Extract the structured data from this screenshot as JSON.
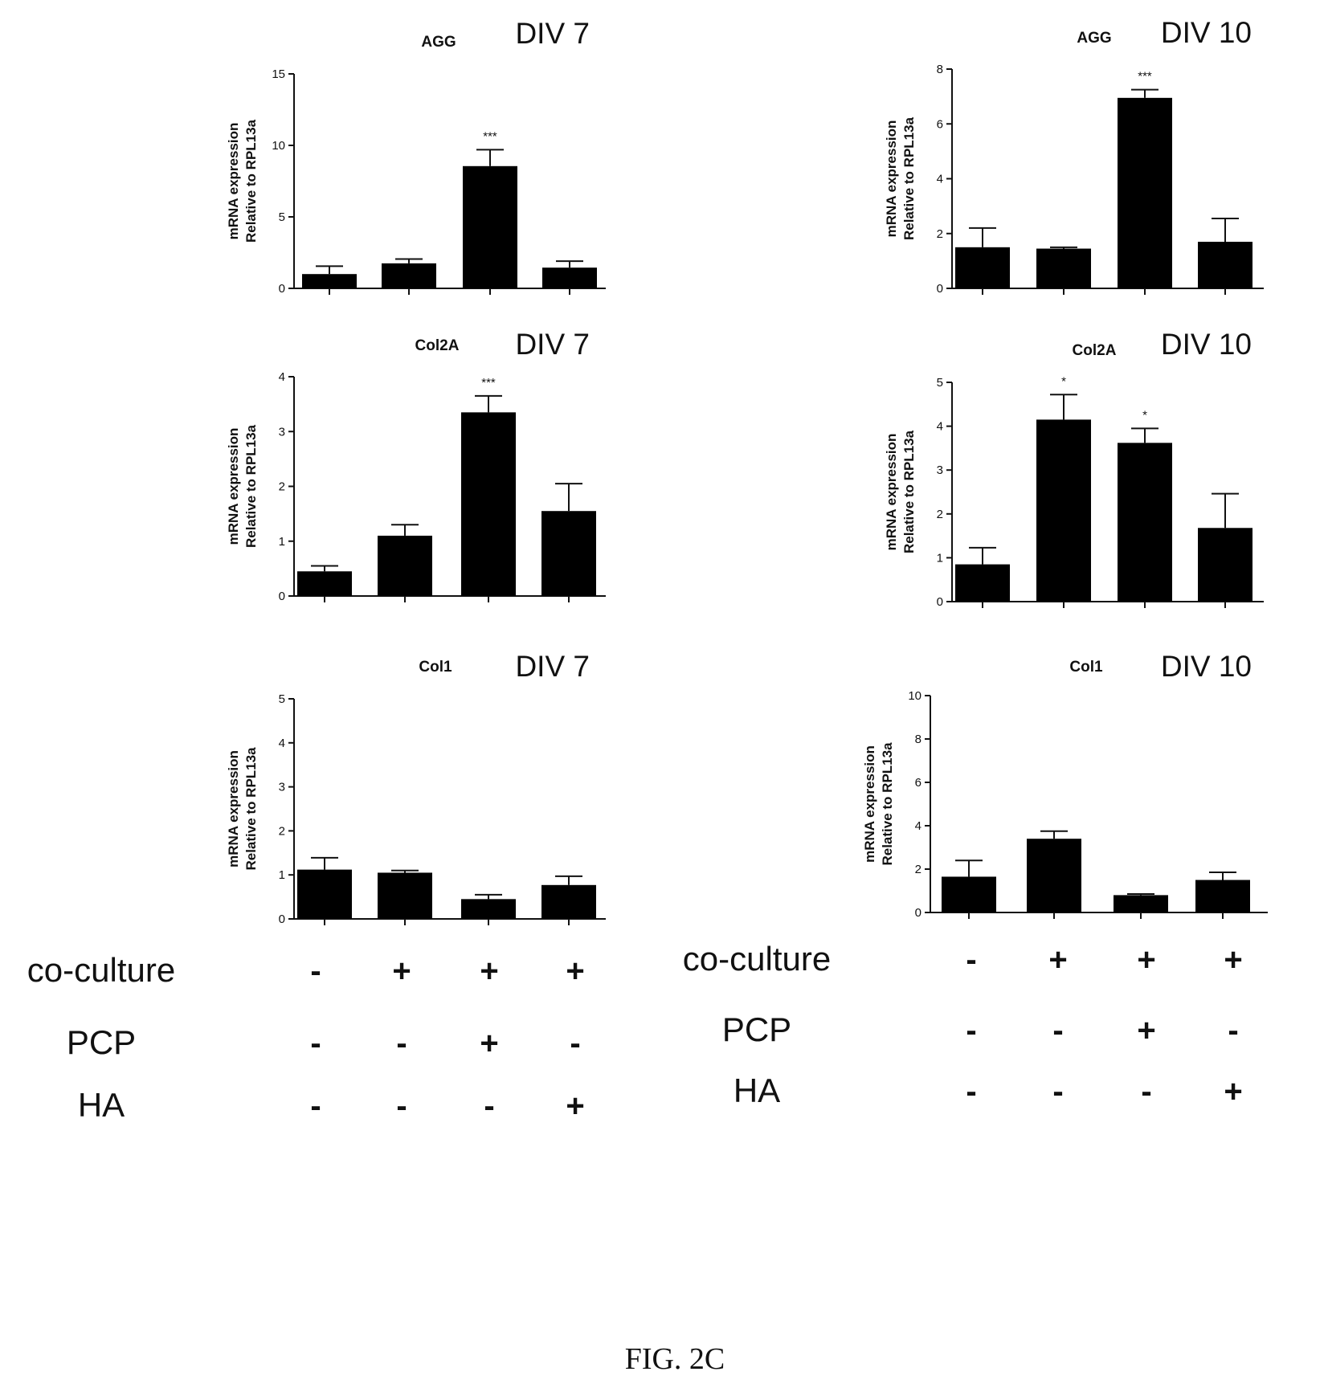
{
  "figure": {
    "caption": "FIG. 2C"
  },
  "chart_data": [
    {
      "type": "bar",
      "gene": "AGG",
      "div": "DIV 7",
      "ylabel": [
        "mRNA expression",
        "Relative to RPL13a"
      ],
      "ylim": [
        0,
        15
      ],
      "yticks": [
        0,
        5,
        10,
        15
      ],
      "values": [
        1.0,
        1.75,
        8.55,
        1.45
      ],
      "errors": [
        0.55,
        0.3,
        1.15,
        0.45
      ],
      "stars": [
        "",
        "",
        "***",
        ""
      ]
    },
    {
      "type": "bar",
      "gene": "AGG",
      "div": "DIV 10",
      "ylabel": [
        "mRNA expression",
        "Relative to RPL13a"
      ],
      "ylim": [
        0,
        8
      ],
      "yticks": [
        0,
        2,
        4,
        6,
        8
      ],
      "values": [
        1.5,
        1.45,
        6.95,
        1.7
      ],
      "errors": [
        0.7,
        0.05,
        0.3,
        0.85
      ],
      "stars": [
        "",
        "",
        "***",
        ""
      ]
    },
    {
      "type": "bar",
      "gene": "Col2A",
      "div": "DIV 7",
      "ylabel": [
        "mRNA expression",
        "Relative to RPL13a"
      ],
      "ylim": [
        0,
        4
      ],
      "yticks": [
        0,
        1,
        2,
        3,
        4
      ],
      "values": [
        0.45,
        1.1,
        3.35,
        1.55
      ],
      "errors": [
        0.1,
        0.2,
        0.3,
        0.5
      ],
      "stars": [
        "",
        "",
        "***",
        ""
      ]
    },
    {
      "type": "bar",
      "gene": "Col2A",
      "div": "DIV 10",
      "ylabel": [
        "mRNA expression",
        "Relative to RPL13a"
      ],
      "ylim": [
        0,
        5
      ],
      "yticks": [
        0,
        1,
        2,
        3,
        4,
        5
      ],
      "values": [
        0.85,
        4.15,
        3.62,
        1.68
      ],
      "errors": [
        0.38,
        0.57,
        0.33,
        0.78
      ],
      "stars": [
        "",
        "*",
        "*",
        ""
      ]
    },
    {
      "type": "bar",
      "gene": "Col1",
      "div": "DIV 7",
      "ylabel": [
        "mRNA expression",
        "Relative to RPL13a"
      ],
      "ylim": [
        0,
        5
      ],
      "yticks": [
        0,
        1,
        2,
        3,
        4,
        5
      ],
      "values": [
        1.12,
        1.05,
        0.45,
        0.77
      ],
      "errors": [
        0.27,
        0.05,
        0.1,
        0.2
      ],
      "stars": [
        "",
        "",
        "",
        ""
      ]
    },
    {
      "type": "bar",
      "gene": "Col1",
      "div": "DIV 10",
      "ylabel": [
        "mRNA expression",
        "Relative to RPL13a"
      ],
      "ylim": [
        0,
        10
      ],
      "yticks": [
        0,
        2,
        4,
        6,
        8,
        10
      ],
      "values": [
        1.65,
        3.4,
        0.8,
        1.5
      ],
      "errors": [
        0.75,
        0.35,
        0.05,
        0.35
      ],
      "stars": [
        "",
        "",
        "",
        ""
      ]
    }
  ],
  "conditions": [
    {
      "group": "DIV 7",
      "rows": [
        {
          "label": "co-culture",
          "signs": [
            "-",
            "+",
            "+",
            "+"
          ]
        },
        {
          "label": "PCP",
          "signs": [
            "-",
            "-",
            "+",
            "-"
          ]
        },
        {
          "label": "HA",
          "signs": [
            "-",
            "-",
            "-",
            "+"
          ]
        }
      ]
    },
    {
      "group": "DIV 10",
      "rows": [
        {
          "label": "co-culture",
          "signs": [
            "-",
            "+",
            "+",
            "+"
          ]
        },
        {
          "label": "PCP",
          "signs": [
            "-",
            "-",
            "+",
            "-"
          ]
        },
        {
          "label": "HA",
          "signs": [
            "-",
            "-",
            "-",
            "+"
          ]
        }
      ]
    }
  ]
}
